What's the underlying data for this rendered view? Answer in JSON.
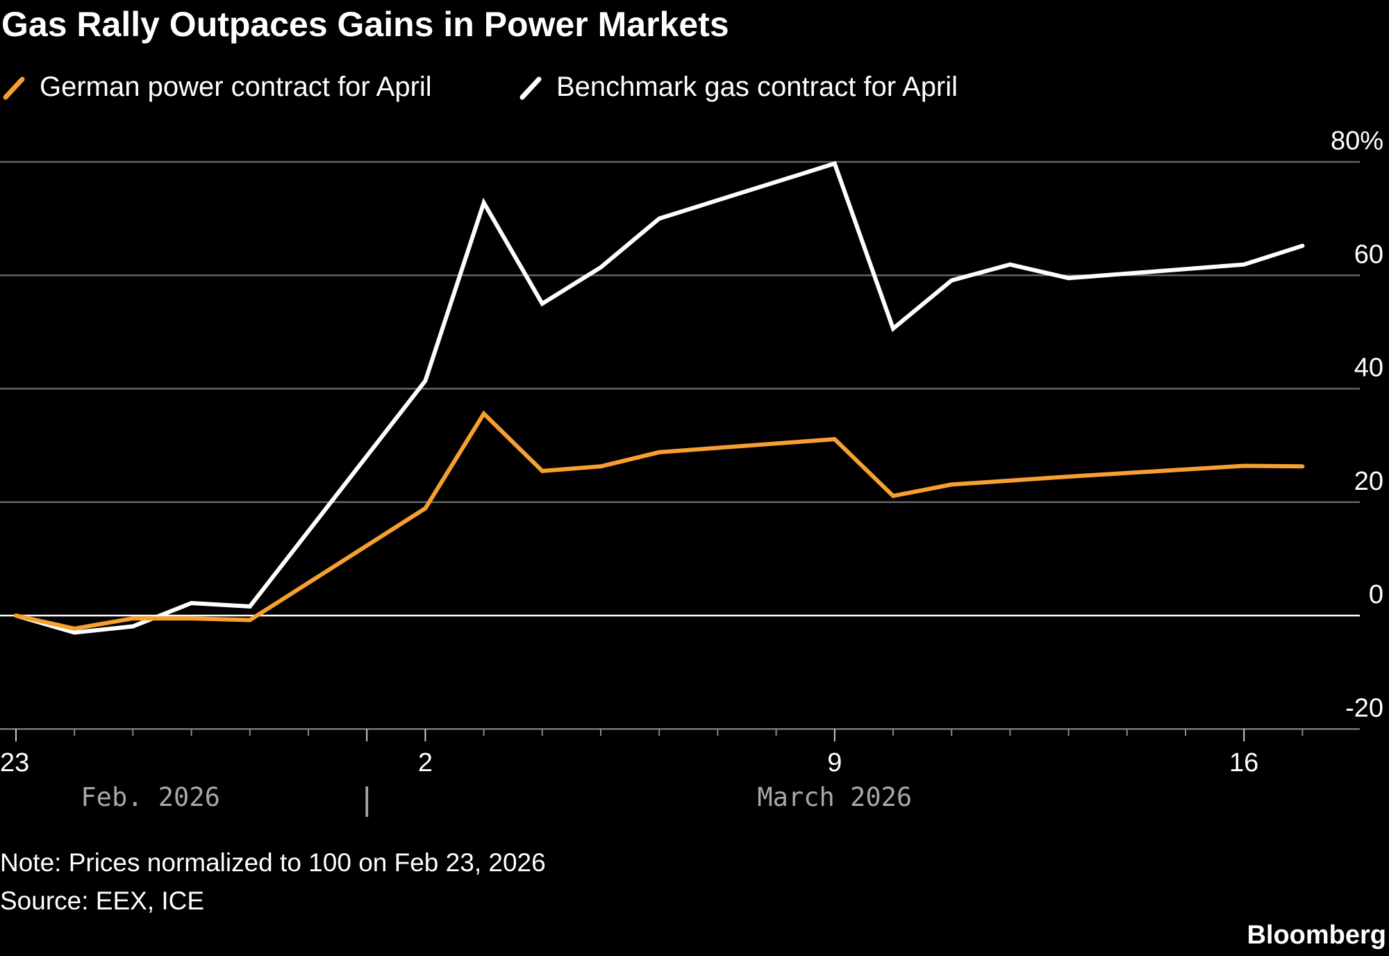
{
  "chart_data": {
    "type": "line",
    "title": "Gas Rally Outpaces Gains in Power Markets",
    "legend_position": "top-left",
    "dates": [
      "2026-02-23",
      "2026-02-24",
      "2026-02-25",
      "2026-02-26",
      "2026-02-27",
      "2026-03-02",
      "2026-03-03",
      "2026-03-04",
      "2026-03-05",
      "2026-03-06",
      "2026-03-09",
      "2026-03-10",
      "2026-03-11",
      "2026-03-12",
      "2026-03-13",
      "2026-03-16",
      "2026-03-17"
    ],
    "day_offsets": [
      0,
      1,
      2,
      3,
      4,
      7,
      8,
      9,
      10,
      11,
      14,
      15,
      16,
      17,
      18,
      21,
      22
    ],
    "series": [
      {
        "name": "German power contract for April",
        "color": "#f7a030",
        "values": [
          0,
          -2.3,
          -0.5,
          -0.5,
          -0.8,
          18.9,
          35.6,
          25.5,
          26.3,
          28.8,
          31.1,
          21.1,
          23.1,
          23.8,
          24.5,
          26.4,
          26.3
        ]
      },
      {
        "name": "Benchmark gas contract for April",
        "color": "#ffffff",
        "values": [
          0,
          -3.0,
          -1.9,
          2.2,
          1.6,
          41.4,
          72.8,
          55.0,
          61.4,
          70.0,
          79.7,
          50.6,
          59.1,
          61.9,
          59.5,
          61.9,
          65.2
        ]
      }
    ],
    "ylim": [
      -20,
      80
    ],
    "y_ticks": [
      80,
      60,
      40,
      20,
      0,
      -20
    ],
    "y_tick_labels": [
      "80%",
      "60",
      "40",
      "20",
      "0",
      "-20"
    ],
    "x_tick_labels": [
      {
        "day": 0,
        "label": "23"
      },
      {
        "day": 7,
        "label": "2"
      },
      {
        "day": 14,
        "label": "9"
      },
      {
        "day": 21,
        "label": "16"
      }
    ],
    "x_total_days": 22,
    "month_labels": [
      {
        "day": 2.3,
        "label": "Feb. 2026"
      },
      {
        "day": 14,
        "label": "March 2026"
      }
    ],
    "month_separator": {
      "day": 6,
      "label": "|"
    },
    "grid": true,
    "xlabel": "",
    "ylabel": ""
  },
  "footer": {
    "note": "Note: Prices normalized to 100 on Feb 23, 2026",
    "source": "Source: EEX, ICE",
    "brand": "Bloomberg"
  }
}
